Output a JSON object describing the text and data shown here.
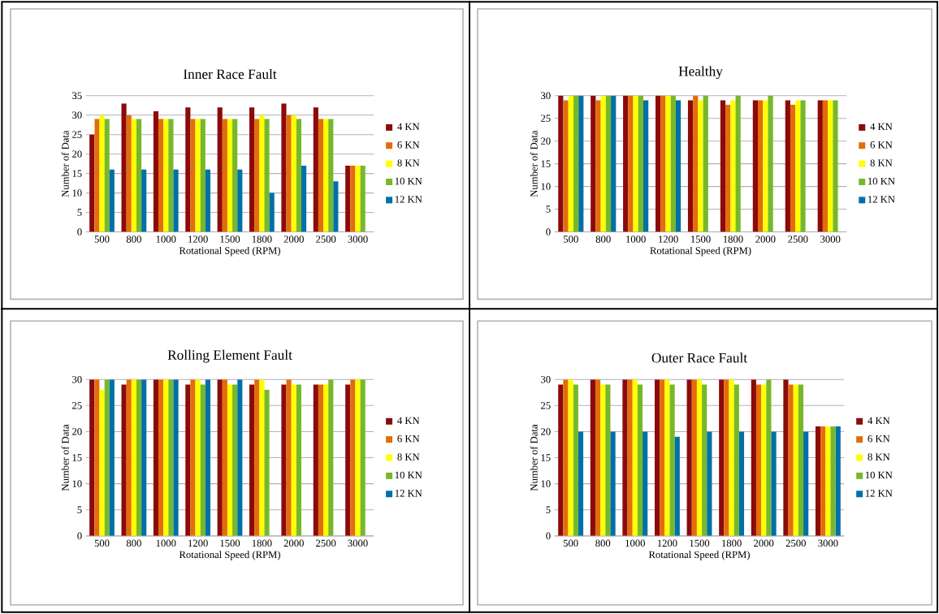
{
  "chart_data": [
    {
      "type": "bar",
      "title": "Inner Race Fault",
      "xlabel": "Rotational Speed (RPM)",
      "ylabel": "Number of Data",
      "categories": [
        "500",
        "800",
        "1000",
        "1200",
        "1500",
        "1800",
        "2000",
        "2500",
        "3000"
      ],
      "ylim": [
        0,
        35
      ],
      "yticks": [
        0,
        5,
        10,
        15,
        20,
        25,
        30,
        35
      ],
      "grid": "y",
      "legend": "right",
      "series": [
        {
          "name": "4 KN",
          "color": "#8b0a0a",
          "values": [
            25,
            33,
            31,
            32,
            32,
            32,
            33,
            32,
            17
          ]
        },
        {
          "name": "6 KN",
          "color": "#e46c0a",
          "values": [
            29,
            30,
            29,
            29,
            29,
            29,
            30,
            29,
            17
          ]
        },
        {
          "name": "8 KN",
          "color": "#ffff00",
          "values": [
            30,
            29,
            29,
            29,
            29,
            30,
            30,
            29,
            17
          ]
        },
        {
          "name": "10 KN",
          "color": "#77b82a",
          "values": [
            29,
            29,
            29,
            29,
            29,
            29,
            29,
            29,
            17
          ]
        },
        {
          "name": "12 KN",
          "color": "#0070a8",
          "values": [
            16,
            16,
            16,
            16,
            16,
            10,
            17,
            13,
            null
          ]
        }
      ]
    },
    {
      "type": "bar",
      "title": "Healthy",
      "xlabel": "Rotational Speed (RPM)",
      "ylabel": "Number of Data",
      "categories": [
        "500",
        "800",
        "1000",
        "1200",
        "1500",
        "1800",
        "2000",
        "2500",
        "3000"
      ],
      "ylim": [
        0,
        30
      ],
      "yticks": [
        0,
        5,
        10,
        15,
        20,
        25,
        30
      ],
      "grid": "y",
      "legend": "right",
      "series": [
        {
          "name": "4 KN",
          "color": "#8b0a0a",
          "values": [
            30,
            30,
            30,
            30,
            29,
            29,
            29,
            29,
            29
          ]
        },
        {
          "name": "6 KN",
          "color": "#e46c0a",
          "values": [
            29,
            29,
            30,
            30,
            30,
            28,
            29,
            28,
            29
          ]
        },
        {
          "name": "8 KN",
          "color": "#ffff00",
          "values": [
            30,
            30,
            30,
            30,
            29,
            29,
            29,
            29,
            29
          ]
        },
        {
          "name": "10 KN",
          "color": "#77b82a",
          "values": [
            30,
            30,
            30,
            30,
            30,
            30,
            30,
            29,
            29
          ]
        },
        {
          "name": "12 KN",
          "color": "#0070a8",
          "values": [
            30,
            30,
            29,
            29,
            null,
            null,
            null,
            null,
            null
          ]
        }
      ]
    },
    {
      "type": "bar",
      "title": "Rolling Element Fault",
      "xlabel": "Rotational Speed (RPM)",
      "ylabel": "Number of Data",
      "categories": [
        "500",
        "800",
        "1000",
        "1200",
        "1500",
        "1800",
        "2000",
        "2500",
        "3000"
      ],
      "ylim": [
        0,
        30
      ],
      "yticks": [
        0,
        5,
        10,
        15,
        20,
        25,
        30
      ],
      "grid": "y",
      "legend": "right",
      "series": [
        {
          "name": "4 KN",
          "color": "#8b0a0a",
          "values": [
            30,
            29,
            30,
            29,
            30,
            29,
            29,
            29,
            29
          ]
        },
        {
          "name": "6 KN",
          "color": "#e46c0a",
          "values": [
            30,
            30,
            30,
            30,
            30,
            30,
            30,
            29,
            30
          ]
        },
        {
          "name": "8 KN",
          "color": "#ffff00",
          "values": [
            28,
            30,
            30,
            30,
            29,
            30,
            29,
            29,
            30
          ]
        },
        {
          "name": "10 KN",
          "color": "#77b82a",
          "values": [
            30,
            30,
            30,
            29,
            29,
            28,
            29,
            30,
            30
          ]
        },
        {
          "name": "12 KN",
          "color": "#0070a8",
          "values": [
            30,
            30,
            30,
            30,
            30,
            null,
            null,
            null,
            null
          ]
        }
      ]
    },
    {
      "type": "bar",
      "title": "Outer Race Fault",
      "xlabel": "Rotational Speed (RPM)",
      "ylabel": "Number of Data",
      "categories": [
        "500",
        "800",
        "1000",
        "1200",
        "1500",
        "1800",
        "2000",
        "2500",
        "3000"
      ],
      "ylim": [
        0,
        30
      ],
      "yticks": [
        0,
        5,
        10,
        15,
        20,
        25,
        30
      ],
      "grid": "y",
      "legend": "right",
      "series": [
        {
          "name": "4 KN",
          "color": "#8b0a0a",
          "values": [
            29,
            30,
            30,
            30,
            30,
            30,
            30,
            30,
            21
          ]
        },
        {
          "name": "6 KN",
          "color": "#e46c0a",
          "values": [
            30,
            30,
            30,
            30,
            30,
            30,
            29,
            29,
            21
          ]
        },
        {
          "name": "8 KN",
          "color": "#ffff00",
          "values": [
            30,
            29,
            30,
            30,
            30,
            30,
            29,
            29,
            21
          ]
        },
        {
          "name": "10 KN",
          "color": "#77b82a",
          "values": [
            29,
            29,
            29,
            29,
            29,
            29,
            30,
            29,
            21
          ]
        },
        {
          "name": "12 KN",
          "color": "#0070a8",
          "values": [
            20,
            20,
            20,
            19,
            20,
            20,
            20,
            20,
            21
          ]
        }
      ]
    }
  ]
}
